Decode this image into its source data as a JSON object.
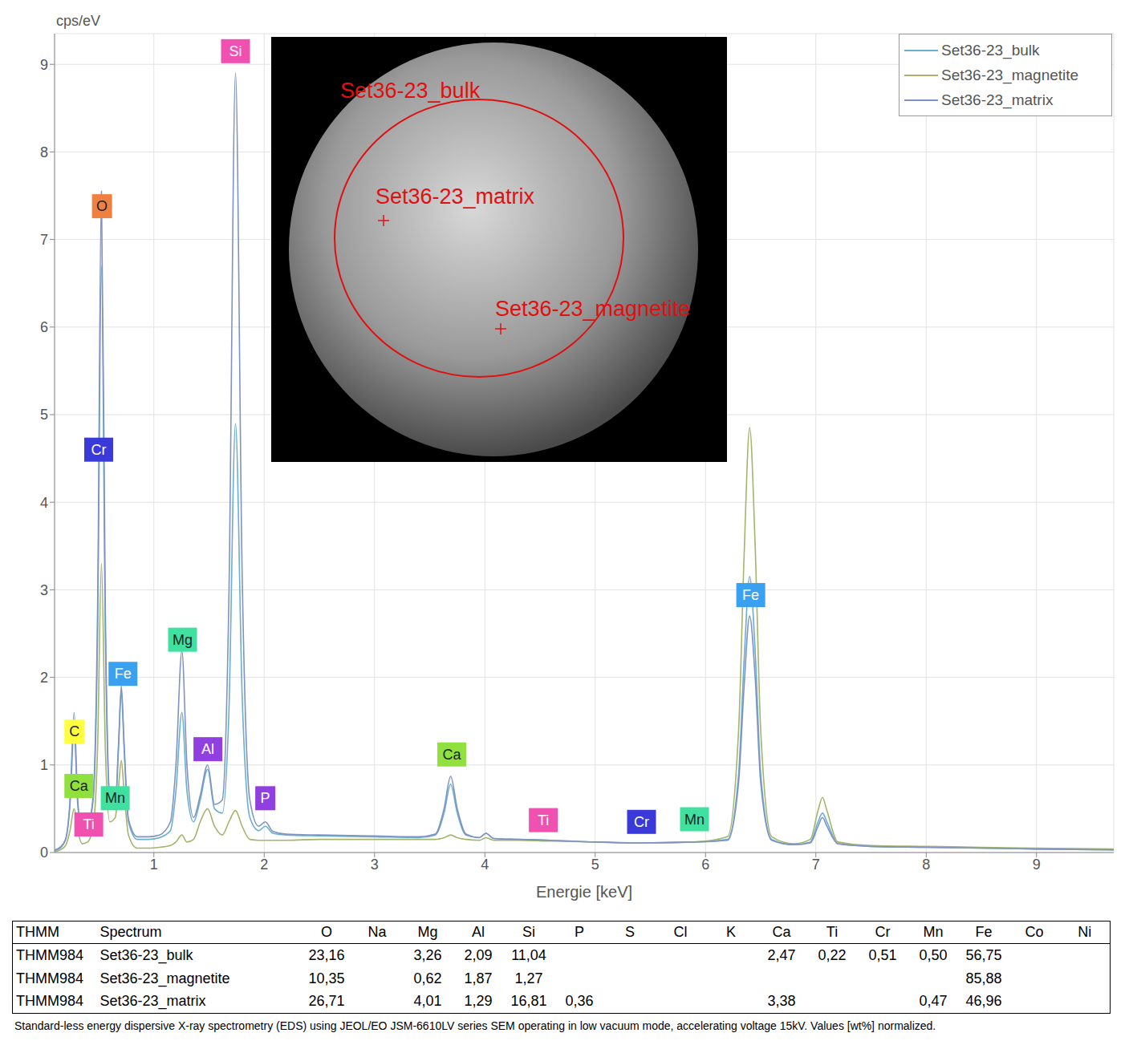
{
  "chart_data": {
    "type": "line",
    "x_label": "Energie [keV]",
    "y_label": "cps/eV",
    "x": [
      0.1,
      0.15,
      0.2,
      0.24,
      0.277,
      0.31,
      0.35,
      0.4,
      0.45,
      0.49,
      0.525,
      0.56,
      0.6,
      0.65,
      0.68,
      0.705,
      0.73,
      0.77,
      0.85,
      0.95,
      1.05,
      1.15,
      1.2,
      1.254,
      1.3,
      1.36,
      1.42,
      1.487,
      1.55,
      1.62,
      1.68,
      1.74,
      1.8,
      1.87,
      1.95,
      2.01,
      2.08,
      2.2,
      2.5,
      3.0,
      3.4,
      3.55,
      3.63,
      3.69,
      3.75,
      3.83,
      3.95,
      4.01,
      4.08,
      4.3,
      4.6,
      5.0,
      5.4,
      5.9,
      6.2,
      6.3,
      6.35,
      6.4,
      6.45,
      6.5,
      6.6,
      6.8,
      6.95,
      7.02,
      7.06,
      7.1,
      7.2,
      7.5,
      8.0,
      8.5,
      9.0,
      9.7
    ],
    "series": [
      {
        "name": "Set36-23_bulk",
        "color": "#6aaed0",
        "values": [
          0.02,
          0.05,
          0.15,
          0.6,
          1.6,
          0.6,
          0.25,
          0.3,
          0.6,
          2.5,
          6.7,
          2.5,
          0.6,
          0.5,
          1.2,
          1.85,
          1.2,
          0.35,
          0.15,
          0.15,
          0.17,
          0.25,
          0.7,
          1.6,
          0.7,
          0.35,
          0.6,
          0.95,
          0.5,
          0.45,
          1.6,
          4.9,
          1.8,
          0.4,
          0.25,
          0.3,
          0.22,
          0.2,
          0.19,
          0.18,
          0.17,
          0.2,
          0.45,
          0.78,
          0.45,
          0.2,
          0.17,
          0.22,
          0.16,
          0.15,
          0.14,
          0.12,
          0.11,
          0.12,
          0.15,
          0.9,
          2.2,
          3.15,
          2.3,
          0.9,
          0.15,
          0.09,
          0.12,
          0.35,
          0.45,
          0.35,
          0.1,
          0.07,
          0.06,
          0.05,
          0.04,
          0.03
        ]
      },
      {
        "name": "Set36-23_magnetite",
        "color": "#a4b46a",
        "values": [
          0.01,
          0.03,
          0.08,
          0.25,
          0.5,
          0.25,
          0.1,
          0.12,
          0.3,
          1.2,
          3.3,
          1.2,
          0.35,
          0.4,
          0.75,
          1.05,
          0.7,
          0.2,
          0.05,
          0.05,
          0.06,
          0.08,
          0.12,
          0.2,
          0.12,
          0.15,
          0.35,
          0.5,
          0.3,
          0.2,
          0.35,
          0.48,
          0.3,
          0.15,
          0.14,
          0.14,
          0.14,
          0.14,
          0.15,
          0.15,
          0.15,
          0.15,
          0.17,
          0.2,
          0.17,
          0.15,
          0.14,
          0.17,
          0.14,
          0.14,
          0.13,
          0.12,
          0.11,
          0.12,
          0.18,
          1.4,
          3.4,
          4.85,
          3.5,
          1.4,
          0.18,
          0.1,
          0.15,
          0.48,
          0.63,
          0.48,
          0.12,
          0.08,
          0.07,
          0.06,
          0.05,
          0.04
        ]
      },
      {
        "name": "Set36-23_matrix",
        "color": "#7f93c3",
        "values": [
          0.03,
          0.06,
          0.15,
          0.55,
          1.4,
          0.55,
          0.25,
          0.3,
          0.65,
          2.8,
          7.55,
          2.8,
          0.65,
          0.55,
          1.25,
          1.9,
          1.25,
          0.38,
          0.18,
          0.18,
          0.2,
          0.35,
          1.0,
          2.3,
          1.0,
          0.4,
          0.65,
          1.0,
          0.55,
          0.6,
          2.9,
          8.9,
          3.2,
          0.6,
          0.3,
          0.35,
          0.24,
          0.21,
          0.2,
          0.19,
          0.18,
          0.21,
          0.5,
          0.87,
          0.5,
          0.21,
          0.17,
          0.22,
          0.16,
          0.15,
          0.14,
          0.12,
          0.11,
          0.12,
          0.14,
          0.8,
          1.9,
          2.7,
          2.0,
          0.8,
          0.14,
          0.09,
          0.11,
          0.3,
          0.4,
          0.3,
          0.1,
          0.07,
          0.06,
          0.05,
          0.04,
          0.03
        ]
      }
    ],
    "xlim": [
      0.1,
      9.7
    ],
    "ylim": [
      0,
      9.35
    ],
    "xticks": [
      1,
      2,
      3,
      4,
      5,
      6,
      7,
      8,
      9
    ],
    "yticks": [
      0,
      1,
      2,
      3,
      4,
      5,
      6,
      7,
      8,
      9
    ],
    "grid": true,
    "legend": "top-right",
    "annotations": [
      {
        "text": "Si",
        "x": 1.74,
        "y": 9.15,
        "color": "#f050b0"
      },
      {
        "text": "O",
        "x": 0.53,
        "y": 7.38,
        "color": "#f08040"
      },
      {
        "text": "Cr",
        "x": 0.5,
        "y": 4.6,
        "color": "#3a3ad8"
      },
      {
        "text": "Mg",
        "x": 1.26,
        "y": 2.43,
        "color": "#40e0a0"
      },
      {
        "text": "Fe",
        "x": 0.72,
        "y": 2.04,
        "color": "#3aa0f0"
      },
      {
        "text": "C",
        "x": 0.28,
        "y": 1.38,
        "color": "#ffff40"
      },
      {
        "text": "Al",
        "x": 1.49,
        "y": 1.18,
        "color": "#9040e0"
      },
      {
        "text": "Ca",
        "x": 0.32,
        "y": 0.76,
        "color": "#90e040"
      },
      {
        "text": "Mn",
        "x": 0.65,
        "y": 0.62,
        "color": "#40e0a0"
      },
      {
        "text": "P",
        "x": 2.01,
        "y": 0.62,
        "color": "#9040e0"
      },
      {
        "text": "Ti",
        "x": 0.41,
        "y": 0.32,
        "color": "#f050b0"
      },
      {
        "text": "Ca",
        "x": 3.7,
        "y": 1.12,
        "color": "#90e040"
      },
      {
        "text": "Ti",
        "x": 4.53,
        "y": 0.37,
        "color": "#f050b0"
      },
      {
        "text": "Cr",
        "x": 5.42,
        "y": 0.35,
        "color": "#3a3ad8"
      },
      {
        "text": "Mn",
        "x": 5.9,
        "y": 0.38,
        "color": "#40e0a0"
      },
      {
        "text": "Fe",
        "x": 6.41,
        "y": 2.94,
        "color": "#3aa0f0"
      }
    ]
  },
  "inset": {
    "labels": [
      "Set36-23_bulk",
      "Set36-23_matrix",
      "Set36-23_magnetite"
    ]
  },
  "table": {
    "header": [
      "THMM",
      "Spectrum",
      "O",
      "Na",
      "Mg",
      "Al",
      "Si",
      "P",
      "S",
      "Cl",
      "K",
      "Ca",
      "Ti",
      "Cr",
      "Mn",
      "Fe",
      "Co",
      "Ni"
    ],
    "rows": [
      [
        "THMM984",
        "Set36-23_bulk",
        "23,16",
        null,
        "3,26",
        "2,09",
        "11,04",
        null,
        null,
        null,
        null,
        "2,47",
        "0,22",
        "0,51",
        "0,50",
        "56,75",
        null,
        null
      ],
      [
        "THMM984",
        "Set36-23_magnetite",
        "10,35",
        null,
        "0,62",
        "1,87",
        "1,27",
        null,
        null,
        null,
        null,
        null,
        null,
        null,
        null,
        "85,88",
        null,
        null
      ],
      [
        "THMM984",
        "Set36-23_matrix",
        "26,71",
        null,
        "4,01",
        "1,29",
        "16,81",
        "0,36",
        null,
        null,
        null,
        "3,38",
        null,
        null,
        "0,47",
        "46,96",
        null,
        null
      ]
    ]
  },
  "caption": "Standard-less energy dispersive X-ray spectrometry (EDS) using JEOL/EO JSM-6610LV series SEM operating in low vacuum mode, accelerating voltage 15kV. Values [wt%] normalized."
}
